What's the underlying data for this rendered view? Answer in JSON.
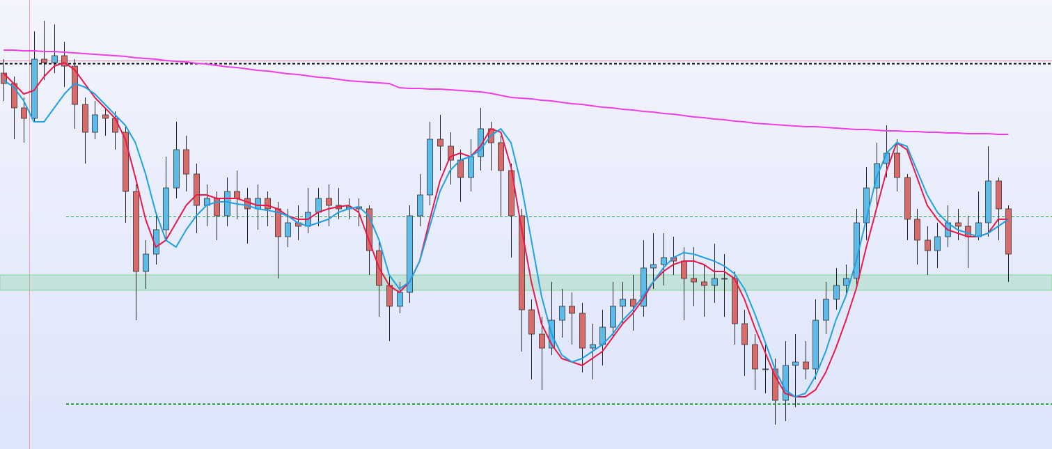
{
  "chart_data": {
    "type": "candlestick",
    "ylim": [
      0,
      645
    ],
    "up_color": "#5bbbea",
    "down_color": "#d96a6a",
    "open": [
      540,
      525,
      490,
      475,
      560,
      555,
      565,
      550,
      495,
      455,
      480,
      475,
      455,
      370,
      255,
      280,
      315,
      375,
      430,
      395,
      350,
      360,
      335,
      370,
      360,
      345,
      360,
      345,
      305,
      325,
      320,
      340,
      360,
      350,
      345,
      348,
      345,
      285,
      235,
      205,
      225,
      335,
      365,
      445,
      435,
      415,
      390,
      420,
      460,
      440,
      400,
      335,
      200,
      165,
      145,
      185,
      205,
      195,
      145,
      150,
      175,
      205,
      215,
      205,
      260,
      265,
      275,
      270,
      245,
      240,
      235,
      245,
      245,
      180,
      150,
      115,
      115,
      70,
      120,
      125,
      115,
      185,
      215,
      235,
      245,
      325,
      375,
      410,
      425,
      390,
      330,
      300,
      285,
      305,
      325,
      320,
      305,
      325,
      385,
      345
    ],
    "high": [
      560,
      535,
      505,
      600,
      615,
      610,
      585,
      560,
      505,
      500,
      490,
      485,
      465,
      380,
      300,
      340,
      420,
      470,
      450,
      410,
      380,
      370,
      390,
      400,
      375,
      380,
      370,
      355,
      345,
      350,
      375,
      375,
      380,
      375,
      360,
      360,
      350,
      300,
      250,
      240,
      350,
      395,
      470,
      480,
      455,
      430,
      445,
      490,
      470,
      450,
      410,
      345,
      215,
      190,
      240,
      230,
      225,
      210,
      180,
      200,
      240,
      240,
      250,
      300,
      310,
      310,
      305,
      290,
      290,
      265,
      295,
      280,
      255,
      200,
      165,
      150,
      130,
      155,
      165,
      155,
      215,
      240,
      260,
      265,
      345,
      405,
      440,
      465,
      445,
      395,
      345,
      320,
      325,
      350,
      345,
      335,
      370,
      435,
      390,
      350
    ],
    "low": [
      500,
      445,
      440,
      470,
      530,
      540,
      520,
      460,
      410,
      445,
      450,
      430,
      325,
      185,
      230,
      265,
      300,
      360,
      370,
      310,
      320,
      300,
      320,
      330,
      295,
      315,
      320,
      245,
      290,
      300,
      310,
      320,
      320,
      330,
      330,
      320,
      250,
      190,
      155,
      195,
      210,
      320,
      350,
      400,
      380,
      355,
      370,
      400,
      400,
      335,
      275,
      140,
      100,
      85,
      135,
      160,
      150,
      110,
      100,
      120,
      160,
      180,
      170,
      190,
      230,
      235,
      250,
      185,
      205,
      190,
      210,
      190,
      150,
      105,
      85,
      80,
      35,
      40,
      60,
      100,
      100,
      165,
      200,
      220,
      230,
      300,
      345,
      390,
      370,
      300,
      265,
      250,
      260,
      290,
      300,
      260,
      300,
      305,
      300,
      240
    ],
    "close": [
      525,
      490,
      475,
      560,
      555,
      565,
      550,
      495,
      455,
      480,
      475,
      455,
      370,
      255,
      280,
      315,
      375,
      430,
      395,
      350,
      360,
      335,
      370,
      360,
      345,
      360,
      345,
      305,
      325,
      320,
      340,
      360,
      350,
      345,
      348,
      345,
      285,
      235,
      205,
      225,
      335,
      365,
      445,
      435,
      415,
      390,
      420,
      460,
      440,
      400,
      335,
      200,
      165,
      145,
      185,
      205,
      195,
      145,
      150,
      175,
      205,
      215,
      205,
      260,
      265,
      275,
      270,
      245,
      240,
      235,
      245,
      245,
      180,
      150,
      115,
      115,
      70,
      120,
      125,
      115,
      185,
      215,
      235,
      245,
      325,
      375,
      410,
      425,
      390,
      330,
      300,
      285,
      305,
      325,
      320,
      305,
      325,
      385,
      345,
      280
    ],
    "lines": [
      {
        "color": "#e8194a",
        "values": [
          540,
          525,
          510,
          515,
          535,
          550,
          555,
          545,
          525,
          505,
          490,
          475,
          445,
          390,
          330,
          290,
          300,
          325,
          350,
          365,
          365,
          360,
          360,
          360,
          355,
          350,
          350,
          345,
          335,
          330,
          330,
          340,
          345,
          348,
          350,
          340,
          300,
          260,
          235,
          225,
          240,
          270,
          330,
          385,
          420,
          425,
          420,
          435,
          460,
          455,
          405,
          320,
          240,
          180,
          150,
          130,
          125,
          120,
          130,
          140,
          160,
          180,
          195,
          215,
          240,
          255,
          265,
          270,
          270,
          265,
          255,
          255,
          245,
          215,
          175,
          140,
          105,
          80,
          75,
          75,
          85,
          110,
          145,
          185,
          230,
          290,
          345,
          400,
          440,
          430,
          390,
          350,
          330,
          315,
          310,
          305,
          305,
          310,
          330,
          330
        ]
      },
      {
        "color": "#1ea0e6",
        "values": [
          530,
          520,
          500,
          470,
          470,
          490,
          510,
          525,
          520,
          510,
          495,
          480,
          465,
          440,
          395,
          340,
          300,
          290,
          315,
          335,
          350,
          355,
          355,
          352,
          350,
          345,
          343,
          340,
          335,
          325,
          320,
          325,
          330,
          340,
          345,
          348,
          335,
          300,
          250,
          230,
          240,
          270,
          320,
          370,
          400,
          415,
          420,
          430,
          450,
          460,
          440,
          380,
          300,
          220,
          165,
          135,
          125,
          130,
          140,
          150,
          165,
          185,
          200,
          220,
          240,
          260,
          275,
          282,
          280,
          275,
          270,
          263,
          252,
          230,
          195,
          155,
          115,
          85,
          75,
          80,
          105,
          140,
          185,
          220,
          270,
          330,
          390,
          425,
          440,
          435,
          400,
          365,
          340,
          325,
          315,
          310,
          305,
          310,
          320,
          330
        ]
      },
      {
        "color": "#f03ce6",
        "values": [
          573,
          573,
          572,
          572,
          571,
          571,
          570,
          569,
          568,
          567,
          566,
          565,
          564,
          562,
          561,
          560,
          558,
          557,
          556,
          554,
          553,
          551,
          549,
          548,
          546,
          544,
          543,
          541,
          539,
          538,
          536,
          534,
          533,
          531,
          529,
          528,
          527,
          526,
          525,
          519,
          518,
          518,
          517,
          517,
          516,
          515,
          514,
          513,
          511,
          508,
          505,
          504,
          503,
          501,
          500,
          498,
          496,
          495,
          493,
          491,
          490,
          488,
          487,
          485,
          484,
          482,
          481,
          479,
          477,
          476,
          474,
          473,
          471,
          470,
          468,
          467,
          466,
          465,
          464,
          463,
          463,
          462,
          461,
          460,
          459,
          459,
          458,
          457,
          457,
          456,
          456,
          455,
          455,
          454,
          454,
          453,
          453,
          453,
          452,
          452
        ]
      }
    ],
    "levels": [
      {
        "value": 558,
        "color": "#f08ab0",
        "style": "solid",
        "start": "left"
      },
      {
        "value": 554,
        "color": "#000000",
        "style": "dashed",
        "start": "left"
      },
      {
        "value": 334,
        "color": "#1e9a3c",
        "style": "dashed",
        "start": "inner"
      },
      {
        "value": 65,
        "color": "#0a8a1e",
        "style": "dashed",
        "start": "inner"
      }
    ],
    "zone": [
      228,
      250
    ]
  }
}
